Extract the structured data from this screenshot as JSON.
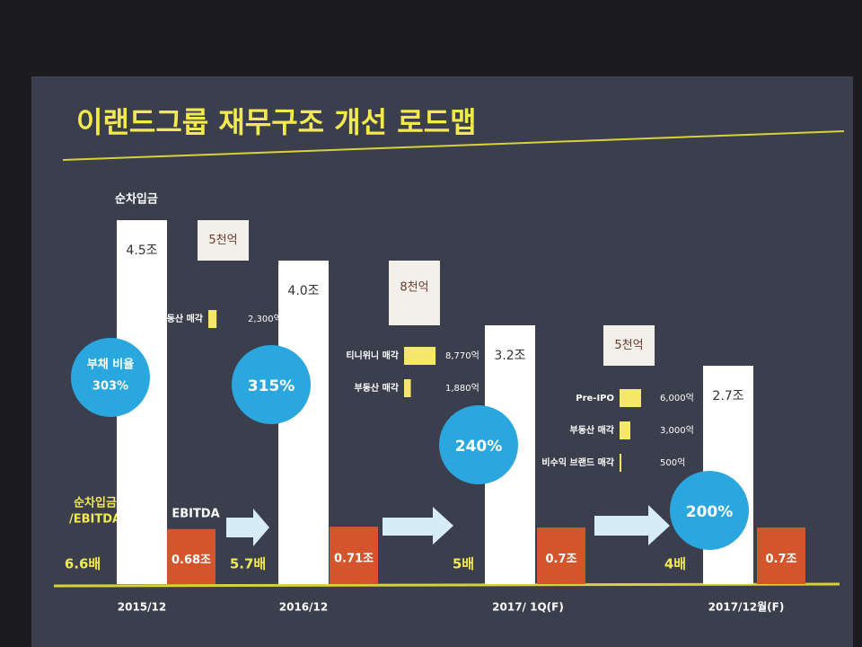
{
  "chart_data": {
    "type": "waterfall",
    "title": "이랜드그룹 재무구조 개선 로드맵",
    "y_label": "순차입금",
    "categories": [
      "2015/12",
      "2016/12",
      "2017/ 1Q(F)",
      "2017/12월(F)"
    ],
    "values": [
      4.5,
      4.0,
      3.2,
      2.7
    ],
    "value_labels": [
      "4.5조",
      "4.0조",
      "3.2조",
      "2.7조"
    ],
    "color": "#ffffff",
    "decreases": [
      0.5,
      0.8,
      0.5
    ],
    "decrease_labels": [
      "5천억",
      "8천억",
      "5천억"
    ],
    "ebitda_label": "EBITDA",
    "ebitda": [
      0.68,
      0.71,
      0.7,
      0.7
    ],
    "ebitda_labels": [
      "0.68조",
      "0.71조",
      "0.7조",
      "0.7조"
    ],
    "ebitda_color": "#d4552b",
    "debt_ratio_name": "부채 비율",
    "debt_ratio_labels": [
      "303%",
      "315%",
      "240%",
      "200%"
    ],
    "multiple_name": [
      "순차입금",
      "/EBITDA"
    ],
    "multiple_labels": [
      "6.6배",
      "5.7배",
      "5배",
      "4배"
    ],
    "asset_sales": [
      [
        {
          "name": "부동산 매각",
          "value": 2300,
          "label": "2,300억"
        }
      ],
      [
        {
          "name": "티니위니 매각",
          "value": 8770,
          "label": "8,770억"
        },
        {
          "name": "부동산 매각",
          "value": 1880,
          "label": "1,880억"
        }
      ],
      [
        {
          "name": "Pre-IPO",
          "value": 6000,
          "label": "6,000억"
        },
        {
          "name": "부동산 매각",
          "value": 3000,
          "label": "3,000억"
        },
        {
          "name": "비수익 브랜드 매각",
          "value": 500,
          "label": "500억"
        }
      ]
    ]
  }
}
